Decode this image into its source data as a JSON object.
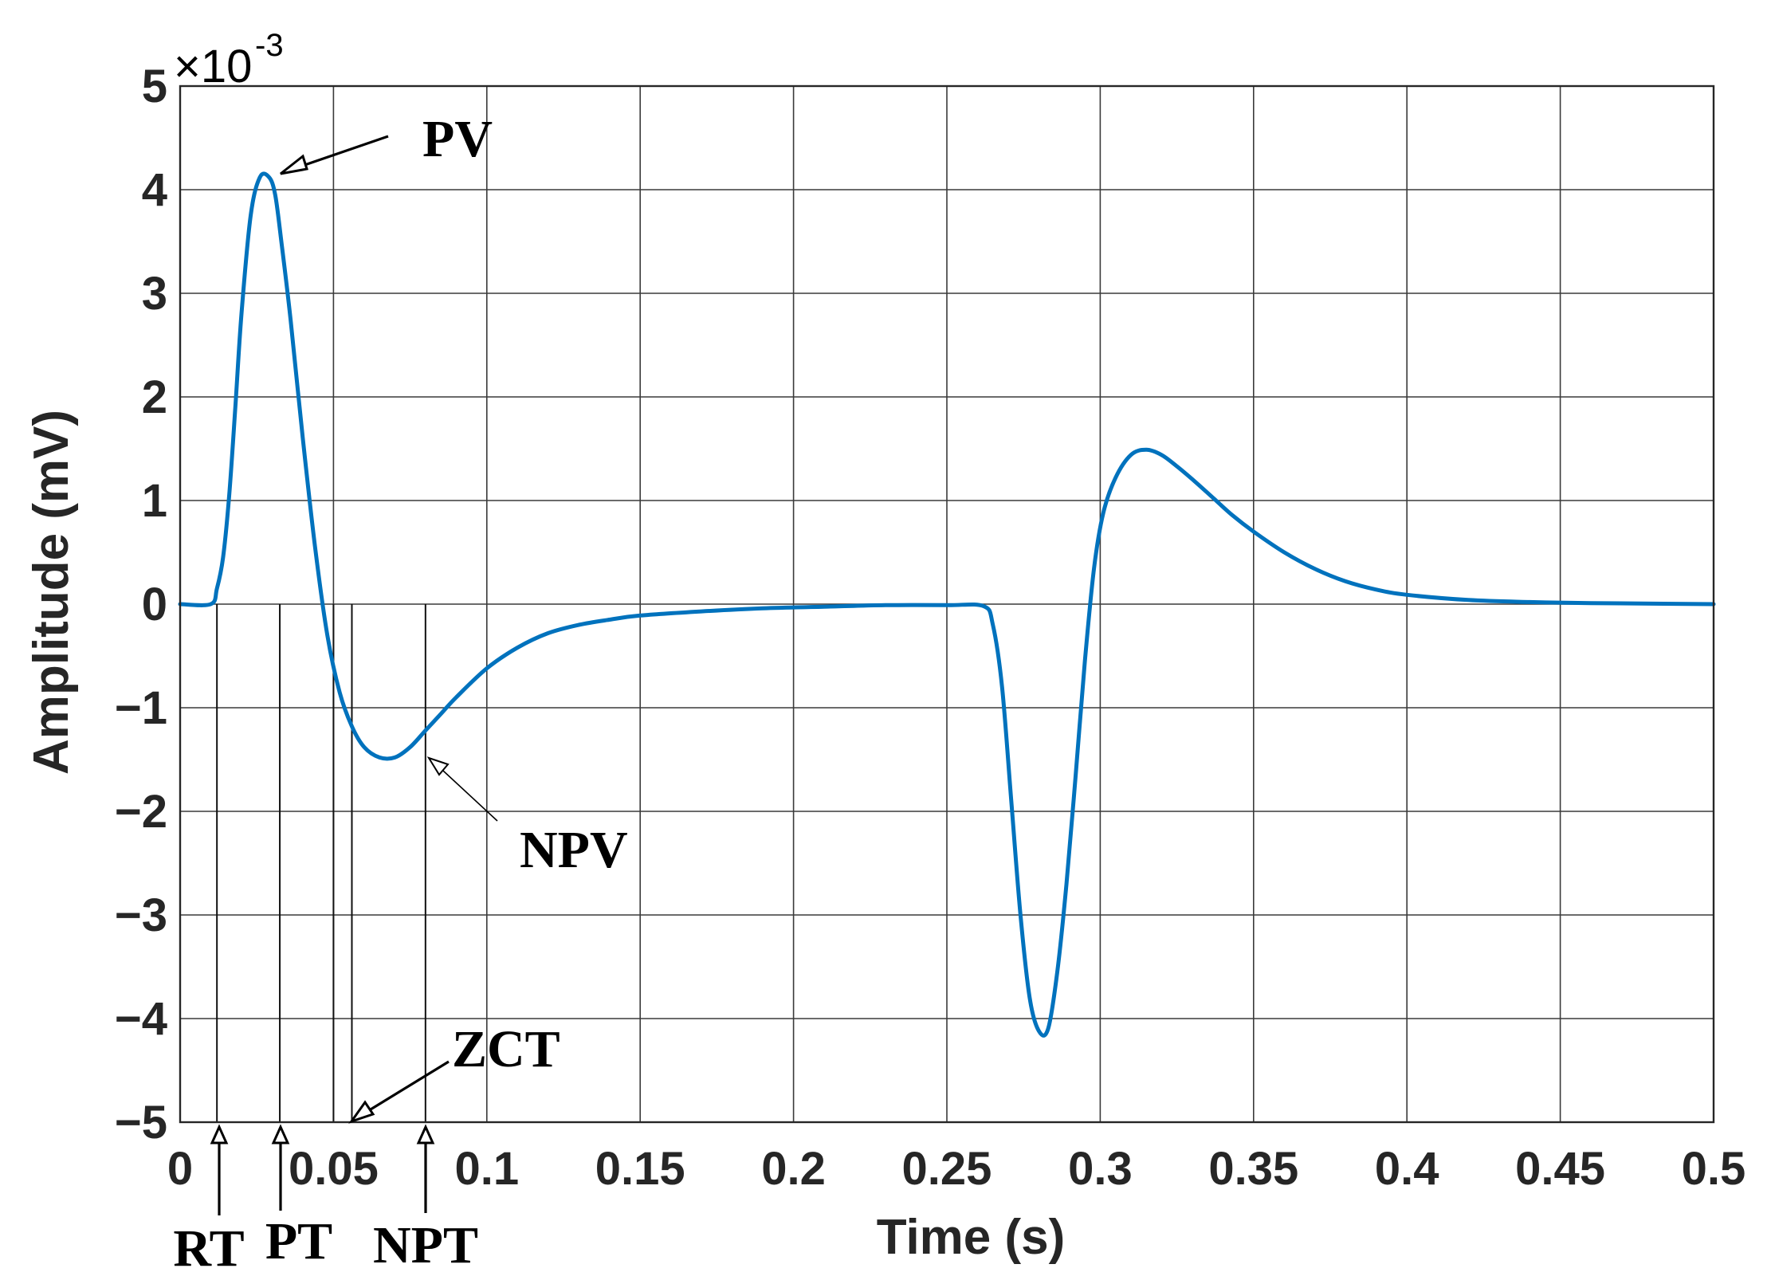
{
  "chart_data": {
    "type": "line",
    "xlabel": "Time (s)",
    "ylabel": "Amplitude (mV)",
    "y_multiplier": {
      "base": "×10",
      "exponent": "-3"
    },
    "xlim": [
      0,
      0.5
    ],
    "ylim": [
      -5,
      5
    ],
    "grid": true,
    "x_ticks": [
      "0",
      "0.05",
      "0.1",
      "0.15",
      "0.2",
      "0.25",
      "0.3",
      "0.35",
      "0.4",
      "0.45",
      "0.5"
    ],
    "x_tick_values": [
      0,
      0.05,
      0.1,
      0.15,
      0.2,
      0.25,
      0.3,
      0.35,
      0.4,
      0.45,
      0.5
    ],
    "y_ticks": [
      "5",
      "4",
      "3",
      "2",
      "1",
      "0",
      "−1",
      "−2",
      "−3",
      "−4",
      "−5"
    ],
    "y_tick_values": [
      5,
      4,
      3,
      2,
      1,
      0,
      -1,
      -2,
      -3,
      -4,
      -5
    ],
    "line_color": "#0072BD",
    "series": [
      {
        "x": [
          0,
          0.01,
          0.012,
          0.014,
          0.016,
          0.018,
          0.02,
          0.023,
          0.026,
          0.029,
          0.031,
          0.033,
          0.036,
          0.04,
          0.044,
          0.048,
          0.052,
          0.056,
          0.06,
          0.065,
          0.07,
          0.075,
          0.08,
          0.085,
          0.09,
          0.1,
          0.11,
          0.12,
          0.13,
          0.14,
          0.15,
          0.17,
          0.19,
          0.21,
          0.23,
          0.25,
          0.262,
          0.265,
          0.268,
          0.271,
          0.274,
          0.277,
          0.28,
          0.283,
          0.286,
          0.289,
          0.292,
          0.295,
          0.298,
          0.301,
          0.305,
          0.31,
          0.315,
          0.32,
          0.325,
          0.331,
          0.337,
          0.343,
          0.35,
          0.36,
          0.37,
          0.38,
          0.39,
          0.4,
          0.42,
          0.44,
          0.46,
          0.48,
          0.5
        ],
        "y": [
          0,
          0,
          0.15,
          0.45,
          1.05,
          1.9,
          2.8,
          3.75,
          4.12,
          4.12,
          3.95,
          3.5,
          2.75,
          1.6,
          0.55,
          -0.3,
          -0.85,
          -1.18,
          -1.38,
          -1.48,
          -1.48,
          -1.38,
          -1.22,
          -1.06,
          -0.9,
          -0.62,
          -0.42,
          -0.28,
          -0.2,
          -0.15,
          -0.11,
          -0.07,
          -0.04,
          -0.025,
          -0.01,
          -0.01,
          -0.02,
          -0.2,
          -0.8,
          -1.9,
          -3.0,
          -3.8,
          -4.12,
          -4.1,
          -3.55,
          -2.7,
          -1.65,
          -0.55,
          0.35,
          0.88,
          1.22,
          1.44,
          1.49,
          1.44,
          1.33,
          1.18,
          1.02,
          0.86,
          0.7,
          0.5,
          0.34,
          0.22,
          0.14,
          0.09,
          0.04,
          0.02,
          0.01,
          0.005,
          0
        ]
      }
    ],
    "markers": [
      {
        "label": "RT",
        "x": 0.012
      },
      {
        "label": "PT",
        "x": 0.0325
      },
      {
        "label": "NPT",
        "x": 0.08
      },
      {
        "label": "",
        "x": 0.05
      },
      {
        "label": "",
        "x": 0.056
      }
    ],
    "annotations": [
      {
        "label": "PV",
        "x": 0.0325,
        "y": 4.1
      },
      {
        "label": "NPV",
        "x": 0.08,
        "y": -1.48
      },
      {
        "label": "ZCT",
        "x": 0.056,
        "y": -5
      }
    ]
  }
}
